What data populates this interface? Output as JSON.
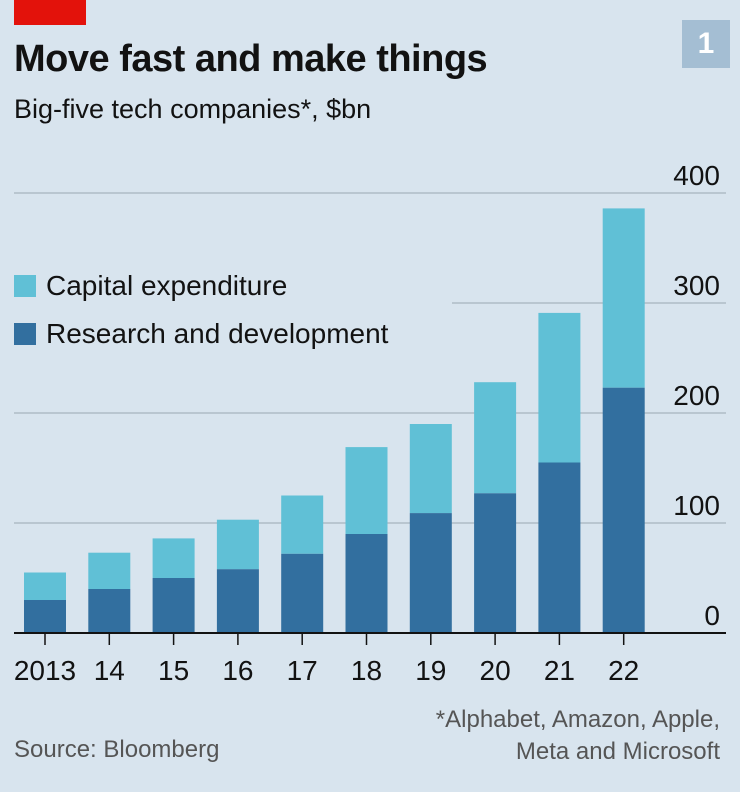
{
  "header": {
    "title": "Move fast and make things",
    "subtitle": "Big-five tech companies*, $bn",
    "badge": "1"
  },
  "footer": {
    "source": "Source: Bloomberg",
    "footnote_line1": "*Alphabet, Amazon, Apple,",
    "footnote_line2": "Meta and Microsoft"
  },
  "colors": {
    "capex": "#60c0d6",
    "rd": "#326f9f",
    "accent": "#e3120b",
    "background": "#d8e4ee"
  },
  "chart_data": {
    "type": "bar",
    "stacked": true,
    "title": "Move fast and make things",
    "subtitle": "Big-five tech companies*, $bn",
    "xlabel": "",
    "ylabel": "$bn",
    "categories": [
      "2013",
      "14",
      "15",
      "16",
      "17",
      "18",
      "19",
      "20",
      "21",
      "22"
    ],
    "series": [
      {
        "name": "Research and development",
        "values": [
          30,
          40,
          50,
          58,
          72,
          90,
          109,
          127,
          155,
          223
        ]
      },
      {
        "name": "Capital expenditure",
        "values": [
          25,
          33,
          36,
          45,
          53,
          79,
          81,
          101,
          136,
          163
        ]
      }
    ],
    "ylim": [
      0,
      400
    ],
    "yticks": [
      "0",
      "100",
      "200",
      "300",
      "400"
    ],
    "legend": [
      "Capital expenditure",
      "Research and development"
    ],
    "legend_position": "top-left",
    "grid": true
  }
}
